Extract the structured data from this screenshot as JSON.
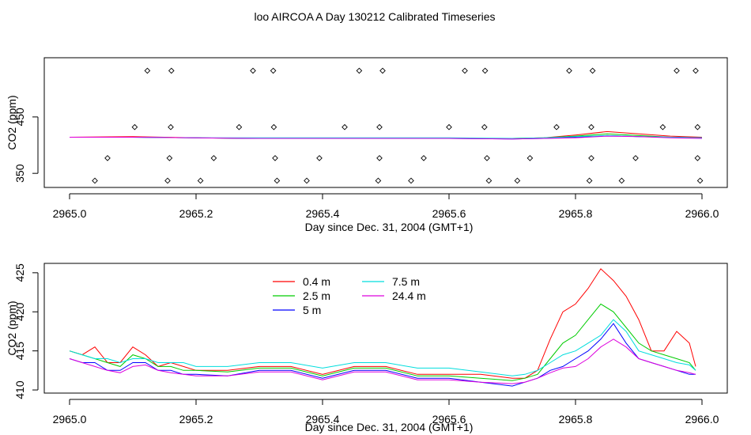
{
  "page_title": "loo AIRCOA A  Day 130212  Calibrated Timeseries",
  "chart_data": [
    {
      "type": "scatter",
      "xlabel": "Day since Dec. 31, 2004 (GMT+1)",
      "ylabel": "CO2 (ppm)",
      "xlim": [
        2964.96,
        2966.04
      ],
      "ylim": [
        325,
        555
      ],
      "x_ticks": [
        "2965.0",
        "2965.2",
        "2965.4",
        "2965.6",
        "2965.8",
        "2966.0"
      ],
      "x_tick_values": [
        2965.0,
        2965.2,
        2965.4,
        2965.6,
        2965.8,
        2966.0
      ],
      "y_ticks": [
        "350",
        "450"
      ],
      "y_tick_values": [
        350,
        450
      ],
      "grid": false,
      "marker": "open-diamond",
      "points": [
        [
          2965.123,
          532
        ],
        [
          2965.161,
          532
        ],
        [
          2965.29,
          532
        ],
        [
          2965.322,
          532
        ],
        [
          2965.458,
          532
        ],
        [
          2965.495,
          532
        ],
        [
          2965.625,
          532
        ],
        [
          2965.657,
          532
        ],
        [
          2965.79,
          532
        ],
        [
          2965.827,
          532
        ],
        [
          2965.96,
          532
        ],
        [
          2965.99,
          532
        ],
        [
          2965.103,
          432
        ],
        [
          2965.16,
          432
        ],
        [
          2965.268,
          432
        ],
        [
          2965.323,
          432
        ],
        [
          2965.435,
          432
        ],
        [
          2965.49,
          432
        ],
        [
          2965.6,
          432
        ],
        [
          2965.656,
          432
        ],
        [
          2965.77,
          432
        ],
        [
          2965.825,
          432
        ],
        [
          2965.938,
          432
        ],
        [
          2965.993,
          432
        ],
        [
          2965.06,
          377
        ],
        [
          2965.158,
          377
        ],
        [
          2965.228,
          377
        ],
        [
          2965.325,
          377
        ],
        [
          2965.395,
          377
        ],
        [
          2965.49,
          377
        ],
        [
          2965.56,
          377
        ],
        [
          2965.66,
          377
        ],
        [
          2965.728,
          377
        ],
        [
          2965.825,
          377
        ],
        [
          2965.895,
          377
        ],
        [
          2965.993,
          377
        ],
        [
          2965.04,
          337
        ],
        [
          2965.155,
          337
        ],
        [
          2965.207,
          337
        ],
        [
          2965.328,
          337
        ],
        [
          2965.375,
          337
        ],
        [
          2965.488,
          337
        ],
        [
          2965.54,
          337
        ],
        [
          2965.663,
          337
        ],
        [
          2965.708,
          337
        ],
        [
          2965.822,
          337
        ],
        [
          2965.873,
          337
        ],
        [
          2965.997,
          337
        ]
      ],
      "series": [
        {
          "color": "#ff0000",
          "x": [
            2965.0,
            2965.1,
            2965.2,
            2965.3,
            2965.4,
            2965.5,
            2965.6,
            2965.7,
            2965.75,
            2965.8,
            2965.85,
            2965.9,
            2965.95,
            2966.0
          ],
          "values": [
            414,
            415,
            413,
            412,
            412,
            412,
            412,
            412,
            413,
            418,
            424,
            420,
            416,
            414
          ]
        },
        {
          "color": "#00cc00",
          "x": [
            2965.0,
            2965.1,
            2965.2,
            2965.3,
            2965.4,
            2965.5,
            2965.6,
            2965.7,
            2965.75,
            2965.8,
            2965.85,
            2965.9,
            2965.95,
            2966.0
          ],
          "values": [
            414,
            414,
            413,
            412,
            412,
            412,
            412,
            412,
            413,
            416,
            420,
            417,
            414,
            413
          ]
        },
        {
          "color": "#0000ff",
          "x": [
            2965.0,
            2965.1,
            2965.2,
            2965.3,
            2965.4,
            2965.5,
            2965.6,
            2965.7,
            2965.75,
            2965.8,
            2965.85,
            2965.9,
            2965.95,
            2966.0
          ],
          "values": [
            414,
            414,
            413,
            412,
            412,
            412,
            412,
            411,
            412,
            414,
            417,
            415,
            414,
            413
          ]
        },
        {
          "color": "#00dddd",
          "x": [
            2965.0,
            2965.1,
            2965.2,
            2965.3,
            2965.4,
            2965.5,
            2965.6,
            2965.7,
            2965.75,
            2965.8,
            2965.85,
            2965.9,
            2965.95,
            2966.0
          ],
          "values": [
            414,
            414,
            413,
            413,
            413,
            413,
            413,
            412,
            413,
            415,
            417,
            415,
            414,
            413
          ]
        },
        {
          "color": "#dd00dd",
          "x": [
            2965.0,
            2965.1,
            2965.2,
            2965.3,
            2965.4,
            2965.5,
            2965.6,
            2965.7,
            2965.75,
            2965.8,
            2965.85,
            2965.9,
            2965.95,
            2966.0
          ],
          "values": [
            414,
            414,
            413,
            412,
            412,
            412,
            412,
            411,
            412,
            413,
            416,
            415,
            413,
            412
          ]
        }
      ]
    },
    {
      "type": "line",
      "xlabel": "Day since Dec. 31, 2004 (GMT+1)",
      "ylabel": "CO2 (ppm)",
      "xlim": [
        2964.96,
        2966.04
      ],
      "ylim": [
        409.6,
        426.2
      ],
      "x_ticks": [
        "2965.0",
        "2965.2",
        "2965.4",
        "2965.6",
        "2965.8",
        "2966.0"
      ],
      "x_tick_values": [
        2965.0,
        2965.2,
        2965.4,
        2965.6,
        2965.8,
        2966.0
      ],
      "y_ticks": [
        "410",
        "415",
        "420",
        "425"
      ],
      "y_tick_values": [
        410,
        415,
        420,
        425
      ],
      "grid": false,
      "legend_position": "top-center",
      "series": [
        {
          "name": "0.4 m",
          "color": "#ff0000",
          "x": [
            2965.0,
            2965.02,
            2965.04,
            2965.06,
            2965.08,
            2965.1,
            2965.12,
            2965.14,
            2965.16,
            2965.18,
            2965.2,
            2965.25,
            2965.3,
            2965.35,
            2965.4,
            2965.45,
            2965.5,
            2965.55,
            2965.6,
            2965.65,
            2965.7,
            2965.72,
            2965.74,
            2965.76,
            2965.78,
            2965.8,
            2965.82,
            2965.84,
            2965.86,
            2965.88,
            2965.9,
            2965.92,
            2965.94,
            2965.96,
            2965.98,
            2965.99
          ],
          "values": [
            415,
            414.5,
            415.5,
            413.5,
            413.5,
            415.5,
            414.5,
            413,
            413.5,
            413,
            412.5,
            412.5,
            413,
            413,
            412,
            413,
            413,
            412,
            412,
            412,
            411.5,
            411.5,
            412.5,
            416.5,
            420,
            421,
            423,
            425.5,
            424,
            422,
            419,
            415,
            415,
            417.5,
            416,
            413
          ]
        },
        {
          "name": "2.5 m",
          "color": "#00cc00",
          "x": [
            2965.0,
            2965.02,
            2965.04,
            2965.06,
            2965.08,
            2965.1,
            2965.12,
            2965.14,
            2965.16,
            2965.18,
            2965.2,
            2965.25,
            2965.3,
            2965.35,
            2965.4,
            2965.45,
            2965.5,
            2965.55,
            2965.6,
            2965.65,
            2965.7,
            2965.72,
            2965.74,
            2965.76,
            2965.78,
            2965.8,
            2965.82,
            2965.84,
            2965.86,
            2965.88,
            2965.9,
            2965.92,
            2965.94,
            2965.96,
            2965.98,
            2965.99
          ],
          "values": [
            415,
            414.5,
            414,
            413.5,
            413,
            414.5,
            414,
            413,
            413,
            412.5,
            412.5,
            412.3,
            412.8,
            412.8,
            411.8,
            412.8,
            412.8,
            411.8,
            411.8,
            411.5,
            411.2,
            411.5,
            412,
            414,
            416,
            417,
            419,
            421,
            420,
            418,
            416,
            415,
            414.5,
            414,
            413.5,
            412.5
          ]
        },
        {
          "name": "5 m",
          "color": "#0000ff",
          "x": [
            2965.0,
            2965.02,
            2965.04,
            2965.06,
            2965.08,
            2965.1,
            2965.12,
            2965.14,
            2965.16,
            2965.18,
            2965.2,
            2965.25,
            2965.3,
            2965.35,
            2965.4,
            2965.45,
            2965.5,
            2965.55,
            2965.6,
            2965.65,
            2965.7,
            2965.72,
            2965.74,
            2965.76,
            2965.78,
            2965.8,
            2965.82,
            2965.84,
            2965.86,
            2965.88,
            2965.9,
            2965.92,
            2965.94,
            2965.96,
            2965.98,
            2965.99
          ],
          "values": [
            414,
            413.5,
            413.5,
            412.5,
            412.5,
            413.5,
            413.5,
            412.5,
            412.5,
            412,
            412,
            411.8,
            412.5,
            412.5,
            411.5,
            412.5,
            412.5,
            411.5,
            411.5,
            411,
            410.5,
            411,
            411.5,
            412.5,
            413,
            414,
            415,
            416.5,
            418.5,
            416,
            414,
            413.5,
            413,
            412.5,
            412,
            412
          ]
        },
        {
          "name": "7.5 m",
          "color": "#00dddd",
          "x": [
            2965.0,
            2965.02,
            2965.04,
            2965.06,
            2965.08,
            2965.1,
            2965.12,
            2965.14,
            2965.16,
            2965.18,
            2965.2,
            2965.25,
            2965.3,
            2965.35,
            2965.4,
            2965.45,
            2965.5,
            2965.55,
            2965.6,
            2965.65,
            2965.7,
            2965.72,
            2965.74,
            2965.76,
            2965.78,
            2965.8,
            2965.82,
            2965.84,
            2965.86,
            2965.88,
            2965.9,
            2965.92,
            2965.94,
            2965.96,
            2965.98,
            2965.99
          ],
          "values": [
            415,
            414.5,
            414,
            414,
            413.5,
            414,
            414,
            413.5,
            413.5,
            413.5,
            413,
            413,
            413.5,
            413.5,
            412.8,
            413.5,
            413.5,
            412.8,
            412.8,
            412.3,
            411.8,
            412,
            412.5,
            413.5,
            414.5,
            415,
            416,
            417,
            419,
            417.5,
            415,
            414.5,
            414,
            413.5,
            413.2,
            412.5
          ]
        },
        {
          "name": "24.4 m",
          "color": "#dd00dd",
          "x": [
            2965.0,
            2965.02,
            2965.04,
            2965.06,
            2965.08,
            2965.1,
            2965.12,
            2965.14,
            2965.16,
            2965.18,
            2965.2,
            2965.25,
            2965.3,
            2965.35,
            2965.4,
            2965.45,
            2965.5,
            2965.55,
            2965.6,
            2965.65,
            2965.7,
            2965.72,
            2965.74,
            2965.76,
            2965.78,
            2965.8,
            2965.82,
            2965.84,
            2965.86,
            2965.88,
            2965.9,
            2965.92,
            2965.94,
            2965.96,
            2965.98,
            2965.99
          ],
          "values": [
            414,
            413.5,
            413,
            412.5,
            412.2,
            413,
            413.2,
            412.5,
            412.2,
            412,
            411.8,
            411.8,
            412.3,
            412.3,
            411.3,
            412.3,
            412.3,
            411.3,
            411.3,
            411,
            410.8,
            411,
            411.5,
            412.2,
            412.8,
            413,
            414,
            415.5,
            416.5,
            415.5,
            414,
            413.5,
            413,
            412.5,
            412.2,
            412
          ]
        }
      ]
    }
  ]
}
